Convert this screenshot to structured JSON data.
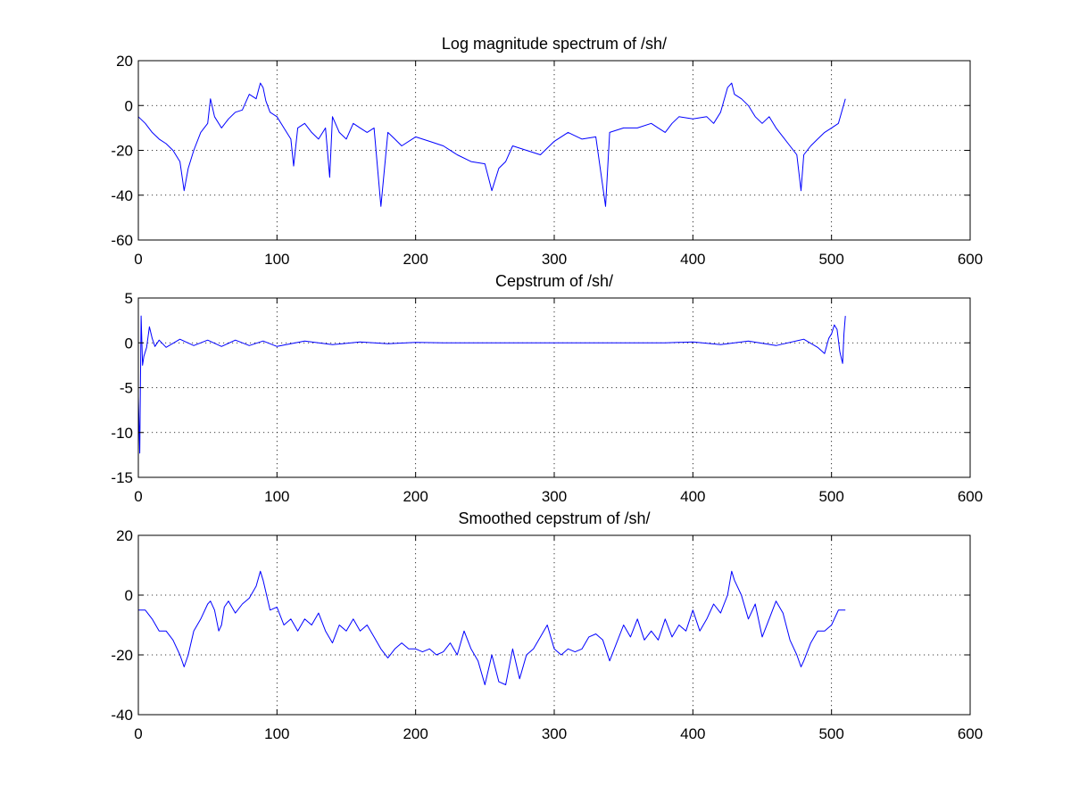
{
  "chart_data": [
    {
      "type": "line",
      "title": "Log magnitude spectrum of /sh/",
      "xlim": [
        0,
        600
      ],
      "ylim": [
        -60,
        20
      ],
      "xticks": [
        0,
        100,
        200,
        300,
        400,
        500,
        600
      ],
      "yticks": [
        -60,
        -40,
        -20,
        0,
        20
      ],
      "grid": true,
      "series": [
        {
          "color": "#0000ff",
          "x": [
            0,
            5,
            10,
            15,
            20,
            25,
            30,
            33,
            36,
            40,
            45,
            50,
            52,
            55,
            60,
            65,
            70,
            75,
            80,
            85,
            88,
            90,
            92,
            95,
            100,
            105,
            110,
            112,
            115,
            120,
            125,
            130,
            135,
            138,
            140,
            145,
            150,
            155,
            160,
            165,
            170,
            175,
            180,
            185,
            190,
            200,
            210,
            220,
            230,
            240,
            250,
            255,
            260,
            265,
            270,
            280,
            290,
            300,
            310,
            320,
            330,
            337,
            340,
            350,
            360,
            370,
            375,
            380,
            385,
            390,
            400,
            410,
            415,
            420,
            425,
            428,
            430,
            435,
            440,
            445,
            450,
            455,
            460,
            465,
            470,
            475,
            478,
            480,
            485,
            490,
            495,
            500,
            505,
            510
          ],
          "y": [
            -5,
            -8,
            -12,
            -15,
            -17,
            -20,
            -25,
            -38,
            -28,
            -20,
            -12,
            -8,
            3,
            -5,
            -10,
            -6,
            -3,
            -2,
            5,
            3,
            10,
            8,
            2,
            -3,
            -5,
            -10,
            -15,
            -27,
            -10,
            -8,
            -12,
            -15,
            -10,
            -32,
            -5,
            -12,
            -15,
            -8,
            -10,
            -12,
            -10,
            -45,
            -12,
            -15,
            -18,
            -14,
            -16,
            -18,
            -22,
            -25,
            -26,
            -38,
            -28,
            -25,
            -18,
            -20,
            -22,
            -16,
            -12,
            -15,
            -14,
            -45,
            -12,
            -10,
            -10,
            -8,
            -10,
            -12,
            -8,
            -5,
            -6,
            -5,
            -8,
            -3,
            8,
            10,
            5,
            3,
            0,
            -5,
            -8,
            -5,
            -10,
            -14,
            -18,
            -22,
            -38,
            -22,
            -18,
            -15,
            -12,
            -10,
            -8,
            3
          ]
        }
      ]
    },
    {
      "type": "line",
      "title": "Cepstrum of /sh/",
      "xlim": [
        0,
        600
      ],
      "ylim": [
        -15,
        5
      ],
      "xticks": [
        0,
        100,
        200,
        300,
        400,
        500,
        600
      ],
      "yticks": [
        -15,
        -10,
        -5,
        0,
        5
      ],
      "grid": true,
      "series": [
        {
          "color": "#0000ff",
          "x": [
            0,
            1,
            2,
            3,
            4,
            6,
            8,
            10,
            12,
            15,
            20,
            30,
            40,
            50,
            60,
            70,
            80,
            90,
            100,
            120,
            140,
            160,
            180,
            200,
            220,
            240,
            260,
            280,
            300,
            320,
            340,
            360,
            380,
            400,
            420,
            440,
            460,
            480,
            490,
            495,
            498,
            500,
            502,
            504,
            506,
            508,
            509,
            510
          ],
          "y": [
            -6,
            -12.3,
            3,
            -2.5,
            -1.5,
            -0.5,
            1.8,
            0.5,
            -0.4,
            0.3,
            -0.5,
            0.4,
            -0.3,
            0.3,
            -0.4,
            0.3,
            -0.3,
            0.2,
            -0.4,
            0.2,
            -0.2,
            0.1,
            -0.1,
            0.05,
            0,
            0,
            0,
            0,
            0,
            0,
            0,
            0,
            0,
            0.1,
            -0.2,
            0.2,
            -0.3,
            0.4,
            -0.5,
            -1.2,
            0.5,
            1,
            2,
            1.5,
            -1,
            -2.3,
            1,
            3
          ]
        }
      ]
    },
    {
      "type": "line",
      "title": "Smoothed cepstrum of /sh/",
      "xlim": [
        0,
        600
      ],
      "ylim": [
        -40,
        20
      ],
      "xticks": [
        0,
        100,
        200,
        300,
        400,
        500,
        600
      ],
      "yticks": [
        -40,
        -20,
        0,
        20
      ],
      "grid": true,
      "series": [
        {
          "color": "#0000ff",
          "x": [
            0,
            5,
            10,
            15,
            20,
            25,
            30,
            33,
            36,
            40,
            45,
            50,
            52,
            55,
            58,
            60,
            62,
            65,
            70,
            75,
            80,
            85,
            88,
            90,
            95,
            100,
            105,
            110,
            115,
            120,
            125,
            130,
            135,
            140,
            145,
            150,
            155,
            160,
            165,
            170,
            175,
            180,
            185,
            190,
            195,
            200,
            205,
            210,
            215,
            220,
            225,
            230,
            235,
            240,
            245,
            250,
            255,
            260,
            265,
            270,
            275,
            280,
            285,
            290,
            295,
            300,
            305,
            310,
            315,
            320,
            325,
            330,
            335,
            340,
            345,
            350,
            355,
            360,
            365,
            370,
            375,
            380,
            385,
            390,
            395,
            400,
            405,
            410,
            415,
            420,
            425,
            428,
            430,
            435,
            440,
            445,
            450,
            455,
            460,
            465,
            470,
            475,
            478,
            480,
            485,
            490,
            495,
            500,
            505,
            510
          ],
          "y": [
            -5,
            -5,
            -8,
            -12,
            -12,
            -15,
            -20,
            -24,
            -20,
            -12,
            -8,
            -3,
            -2,
            -5,
            -12,
            -10,
            -4,
            -2,
            -6,
            -3,
            -1,
            3,
            8,
            5,
            -5,
            -4,
            -10,
            -8,
            -12,
            -8,
            -10,
            -6,
            -12,
            -16,
            -10,
            -12,
            -8,
            -12,
            -10,
            -14,
            -18,
            -21,
            -18,
            -16,
            -18,
            -18,
            -19,
            -18,
            -20,
            -19,
            -16,
            -20,
            -12,
            -18,
            -22,
            -30,
            -20,
            -29,
            -30,
            -18,
            -28,
            -20,
            -18,
            -14,
            -10,
            -18,
            -20,
            -18,
            -19,
            -18,
            -14,
            -13,
            -15,
            -22,
            -16,
            -10,
            -14,
            -8,
            -15,
            -12,
            -15,
            -8,
            -14,
            -10,
            -12,
            -5,
            -12,
            -8,
            -3,
            -6,
            0,
            8,
            5,
            0,
            -8,
            -3,
            -14,
            -8,
            -2,
            -6,
            -15,
            -20,
            -24,
            -22,
            -16,
            -12,
            -12,
            -10,
            -5,
            -5
          ]
        }
      ]
    }
  ]
}
